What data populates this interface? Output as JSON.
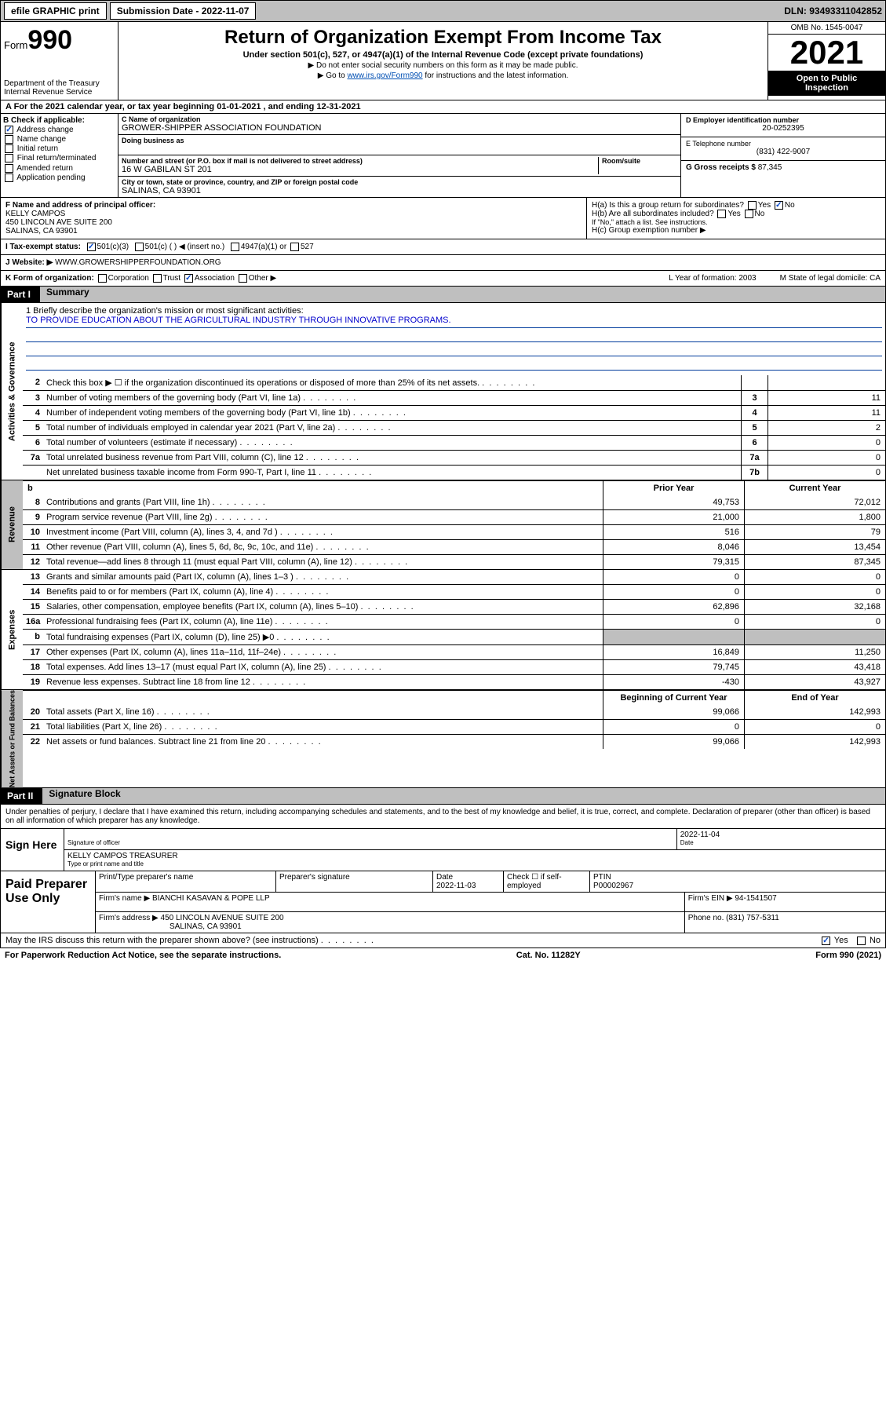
{
  "topbar": {
    "efile": "efile GRAPHIC print",
    "submission_label": "Submission Date - 2022-11-07",
    "dln": "DLN: 93493311042852"
  },
  "header": {
    "form_word": "Form",
    "form_num": "990",
    "dept": "Department of the Treasury",
    "irs": "Internal Revenue Service",
    "title": "Return of Organization Exempt From Income Tax",
    "sub": "Under section 501(c), 527, or 4947(a)(1) of the Internal Revenue Code (except private foundations)",
    "note1": "▶ Do not enter social security numbers on this form as it may be made public.",
    "note2_pre": "▶ Go to ",
    "note2_link": "www.irs.gov/Form990",
    "note2_post": " for instructions and the latest information.",
    "omb": "OMB No. 1545-0047",
    "year": "2021",
    "insp1": "Open to Public",
    "insp2": "Inspection"
  },
  "section_a": "A For the 2021 calendar year, or tax year beginning 01-01-2021    , and ending 12-31-2021",
  "col_b": {
    "title": "B Check if applicable:",
    "items": [
      "Address change",
      "Name change",
      "Initial return",
      "Final return/terminated",
      "Amended return",
      "Application pending"
    ],
    "checked": [
      true,
      false,
      false,
      false,
      false,
      false
    ]
  },
  "col_c": {
    "name_label": "C Name of organization",
    "name": "GROWER-SHIPPER ASSOCIATION FOUNDATION",
    "dba_label": "Doing business as",
    "dba": "",
    "addr_label": "Number and street (or P.O. box if mail is not delivered to street address)",
    "room_label": "Room/suite",
    "addr": "16 W GABILAN ST 201",
    "city_label": "City or town, state or province, country, and ZIP or foreign postal code",
    "city": "SALINAS, CA  93901"
  },
  "col_d": {
    "ein_label": "D Employer identification number",
    "ein": "20-0252395",
    "phone_label": "E Telephone number",
    "phone": "(831) 422-9007",
    "gross_label": "G Gross receipts $",
    "gross": "87,345"
  },
  "row_f": {
    "label": "F Name and address of principal officer:",
    "name": "KELLY CAMPOS",
    "addr1": "450 LINCOLN AVE SUITE 200",
    "addr2": "SALINAS, CA  93901"
  },
  "row_h": {
    "ha": "H(a) Is this a group return for subordinates?",
    "hb": "H(b) Are all subordinates included?",
    "note": "If \"No,\" attach a list. See instructions.",
    "hc": "H(c) Group exemption number ▶"
  },
  "row_i": {
    "label": "I  Tax-exempt status:",
    "opts": [
      "501(c)(3)",
      "501(c) (   ) ◀ (insert no.)",
      "4947(a)(1) or",
      "527"
    ]
  },
  "row_j": {
    "label": "J  Website: ▶",
    "val": "WWW.GROWERSHIPPERFOUNDATION.ORG"
  },
  "row_k": {
    "label": "K Form of organization:",
    "opts": [
      "Corporation",
      "Trust",
      "Association",
      "Other ▶"
    ],
    "l": "L Year of formation: 2003",
    "m": "M State of legal domicile: CA"
  },
  "part1": {
    "num": "Part I",
    "title": "Summary"
  },
  "mission": {
    "q": "1   Briefly describe the organization's mission or most significant activities:",
    "text": "TO PROVIDE EDUCATION ABOUT THE AGRICULTURAL INDUSTRY THROUGH INNOVATIVE PROGRAMS."
  },
  "gov_lines": [
    {
      "n": "2",
      "d": "Check this box ▶ ☐ if the organization discontinued its operations or disposed of more than 25% of its net assets.",
      "box": "",
      "v": ""
    },
    {
      "n": "3",
      "d": "Number of voting members of the governing body (Part VI, line 1a)",
      "box": "3",
      "v": "11"
    },
    {
      "n": "4",
      "d": "Number of independent voting members of the governing body (Part VI, line 1b)",
      "box": "4",
      "v": "11"
    },
    {
      "n": "5",
      "d": "Total number of individuals employed in calendar year 2021 (Part V, line 2a)",
      "box": "5",
      "v": "2"
    },
    {
      "n": "6",
      "d": "Total number of volunteers (estimate if necessary)",
      "box": "6",
      "v": "0"
    },
    {
      "n": "7a",
      "d": "Total unrelated business revenue from Part VIII, column (C), line 12",
      "box": "7a",
      "v": "0"
    },
    {
      "n": "",
      "d": "Net unrelated business taxable income from Form 990-T, Part I, line 11",
      "box": "7b",
      "v": "0"
    }
  ],
  "col_headers": {
    "b": "b",
    "prior": "Prior Year",
    "current": "Current Year"
  },
  "rev_lines": [
    {
      "n": "8",
      "d": "Contributions and grants (Part VIII, line 1h)",
      "p": "49,753",
      "c": "72,012"
    },
    {
      "n": "9",
      "d": "Program service revenue (Part VIII, line 2g)",
      "p": "21,000",
      "c": "1,800"
    },
    {
      "n": "10",
      "d": "Investment income (Part VIII, column (A), lines 3, 4, and 7d )",
      "p": "516",
      "c": "79"
    },
    {
      "n": "11",
      "d": "Other revenue (Part VIII, column (A), lines 5, 6d, 8c, 9c, 10c, and 11e)",
      "p": "8,046",
      "c": "13,454"
    },
    {
      "n": "12",
      "d": "Total revenue—add lines 8 through 11 (must equal Part VIII, column (A), line 12)",
      "p": "79,315",
      "c": "87,345"
    }
  ],
  "exp_lines": [
    {
      "n": "13",
      "d": "Grants and similar amounts paid (Part IX, column (A), lines 1–3 )",
      "p": "0",
      "c": "0"
    },
    {
      "n": "14",
      "d": "Benefits paid to or for members (Part IX, column (A), line 4)",
      "p": "0",
      "c": "0"
    },
    {
      "n": "15",
      "d": "Salaries, other compensation, employee benefits (Part IX, column (A), lines 5–10)",
      "p": "62,896",
      "c": "32,168"
    },
    {
      "n": "16a",
      "d": "Professional fundraising fees (Part IX, column (A), line 11e)",
      "p": "0",
      "c": "0"
    },
    {
      "n": "b",
      "d": "Total fundraising expenses (Part IX, column (D), line 25) ▶0",
      "p": "",
      "c": "",
      "shaded": true
    },
    {
      "n": "17",
      "d": "Other expenses (Part IX, column (A), lines 11a–11d, 11f–24e)",
      "p": "16,849",
      "c": "11,250"
    },
    {
      "n": "18",
      "d": "Total expenses. Add lines 13–17 (must equal Part IX, column (A), line 25)",
      "p": "79,745",
      "c": "43,418"
    },
    {
      "n": "19",
      "d": "Revenue less expenses. Subtract line 18 from line 12",
      "p": "-430",
      "c": "43,927"
    }
  ],
  "bal_headers": {
    "begin": "Beginning of Current Year",
    "end": "End of Year"
  },
  "bal_lines": [
    {
      "n": "20",
      "d": "Total assets (Part X, line 16)",
      "p": "99,066",
      "c": "142,993"
    },
    {
      "n": "21",
      "d": "Total liabilities (Part X, line 26)",
      "p": "0",
      "c": "0"
    },
    {
      "n": "22",
      "d": "Net assets or fund balances. Subtract line 21 from line 20",
      "p": "99,066",
      "c": "142,993"
    }
  ],
  "part2": {
    "num": "Part II",
    "title": "Signature Block"
  },
  "sig_text": "Under penalties of perjury, I declare that I have examined this return, including accompanying schedules and statements, and to the best of my knowledge and belief, it is true, correct, and complete. Declaration of preparer (other than officer) is based on all information of which preparer has any knowledge.",
  "sig": {
    "here": "Sign Here",
    "officer_lbl": "Signature of officer",
    "date_lbl": "Date",
    "date": "2022-11-04",
    "name": "KELLY CAMPOS TREASURER",
    "name_lbl": "Type or print name and title"
  },
  "prep": {
    "label": "Paid Preparer Use Only",
    "name_lbl": "Print/Type preparer's name",
    "sig_lbl": "Preparer's signature",
    "date_lbl": "Date",
    "date": "2022-11-03",
    "check_lbl": "Check ☐ if self-employed",
    "ptin_lbl": "PTIN",
    "ptin": "P00002967",
    "firm_name_lbl": "Firm's name     ▶",
    "firm_name": "BIANCHI KASAVAN & POPE LLP",
    "firm_ein_lbl": "Firm's EIN ▶",
    "firm_ein": "94-1541507",
    "firm_addr_lbl": "Firm's address ▶",
    "firm_addr1": "450 LINCOLN AVENUE SUITE 200",
    "firm_addr2": "SALINAS, CA  93901",
    "phone_lbl": "Phone no.",
    "phone": "(831) 757-5311"
  },
  "discuss": {
    "q": "May the IRS discuss this return with the preparer shown above? (see instructions)",
    "yes": "Yes",
    "no": "No"
  },
  "footer": {
    "left": "For Paperwork Reduction Act Notice, see the separate instructions.",
    "mid": "Cat. No. 11282Y",
    "right": "Form 990 (2021)"
  }
}
